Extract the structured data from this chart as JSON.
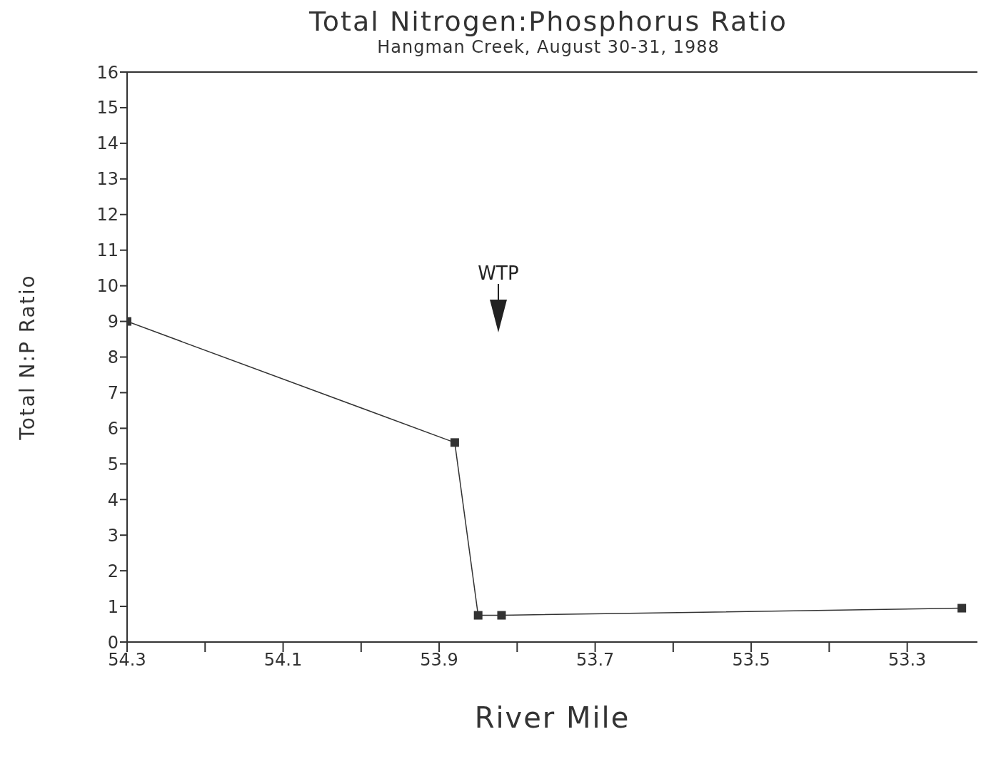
{
  "chart_data": {
    "type": "line",
    "title": "Total Nitrogen:Phosphorus Ratio",
    "subtitle": "Hangman Creek, August 30-31, 1988",
    "xlabel": "River Mile",
    "ylabel": "Total N:P Ratio",
    "x": [
      54.3,
      53.88,
      53.85,
      53.82,
      53.23
    ],
    "series": [
      {
        "color": "#333333",
        "values": [
          9.0,
          5.6,
          0.75,
          0.75,
          0.95
        ]
      }
    ],
    "xlim": [
      54.3,
      53.21
    ],
    "xticks": [
      54.3,
      {
        "value": 54.2,
        "label": null
      },
      54.1,
      {
        "value": 54.0,
        "label": null
      },
      53.9,
      {
        "value": 53.8,
        "label": null
      },
      53.7,
      {
        "value": 53.6,
        "label": null
      },
      53.5,
      {
        "value": 53.4,
        "label": null
      },
      53.3
    ],
    "ylim": [
      0,
      16
    ],
    "yticks": [
      0,
      1,
      2,
      3,
      4,
      5,
      6,
      7,
      8,
      9,
      10,
      11,
      12,
      13,
      14,
      15,
      16
    ],
    "annotations": [
      "WTP"
    ],
    "marker": "square",
    "line_style": "solid"
  }
}
